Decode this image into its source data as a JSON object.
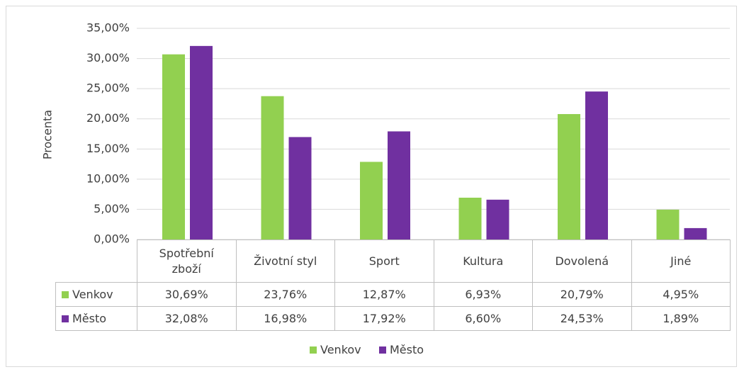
{
  "chart_data": {
    "type": "bar",
    "ylabel": "Procenta",
    "categories": [
      "Spotřební zboží",
      "Životní styl",
      "Sport",
      "Kultura",
      "Dovolená",
      "Jiné"
    ],
    "series": [
      {
        "name": "Venkov",
        "color": "#92d050",
        "values": [
          30.69,
          23.76,
          12.87,
          6.93,
          20.79,
          4.95
        ],
        "value_labels": [
          "30,69%",
          "23,76%",
          "12,87%",
          "6,93%",
          "20,79%",
          "4,95%"
        ]
      },
      {
        "name": "Město",
        "color": "#7030a0",
        "values": [
          32.08,
          16.98,
          17.92,
          6.6,
          24.53,
          1.89
        ],
        "value_labels": [
          "32,08%",
          "16,98%",
          "17,92%",
          "6,60%",
          "24,53%",
          "1,89%"
        ]
      }
    ],
    "ylim": [
      0,
      35
    ],
    "yticks": [
      {
        "value": 0,
        "label": "0,00%"
      },
      {
        "value": 5,
        "label": "5,00%"
      },
      {
        "value": 10,
        "label": "10,00%"
      },
      {
        "value": 15,
        "label": "15,00%"
      },
      {
        "value": 20,
        "label": "20,00%"
      },
      {
        "value": 25,
        "label": "25,00%"
      },
      {
        "value": 30,
        "label": "30,00%"
      },
      {
        "value": 35,
        "label": "35,00%"
      }
    ],
    "grid": true,
    "legend": "bottom"
  }
}
